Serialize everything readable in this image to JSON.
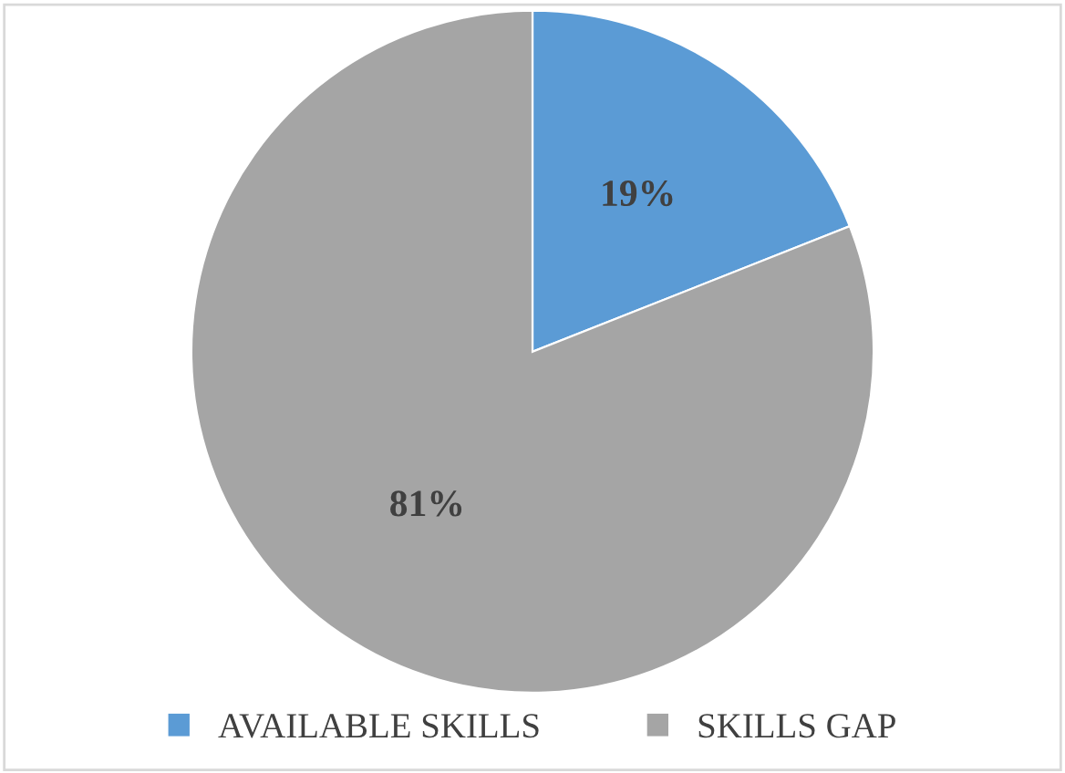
{
  "chart_data": {
    "type": "pie",
    "categories": [
      "AVAILABLE SKILLS",
      "SKILLS GAP"
    ],
    "values": [
      19,
      81
    ],
    "colors": [
      "#5b9bd5",
      "#a5a5a5"
    ],
    "value_labels": [
      "19%",
      "81%"
    ],
    "legend": "bottom"
  }
}
